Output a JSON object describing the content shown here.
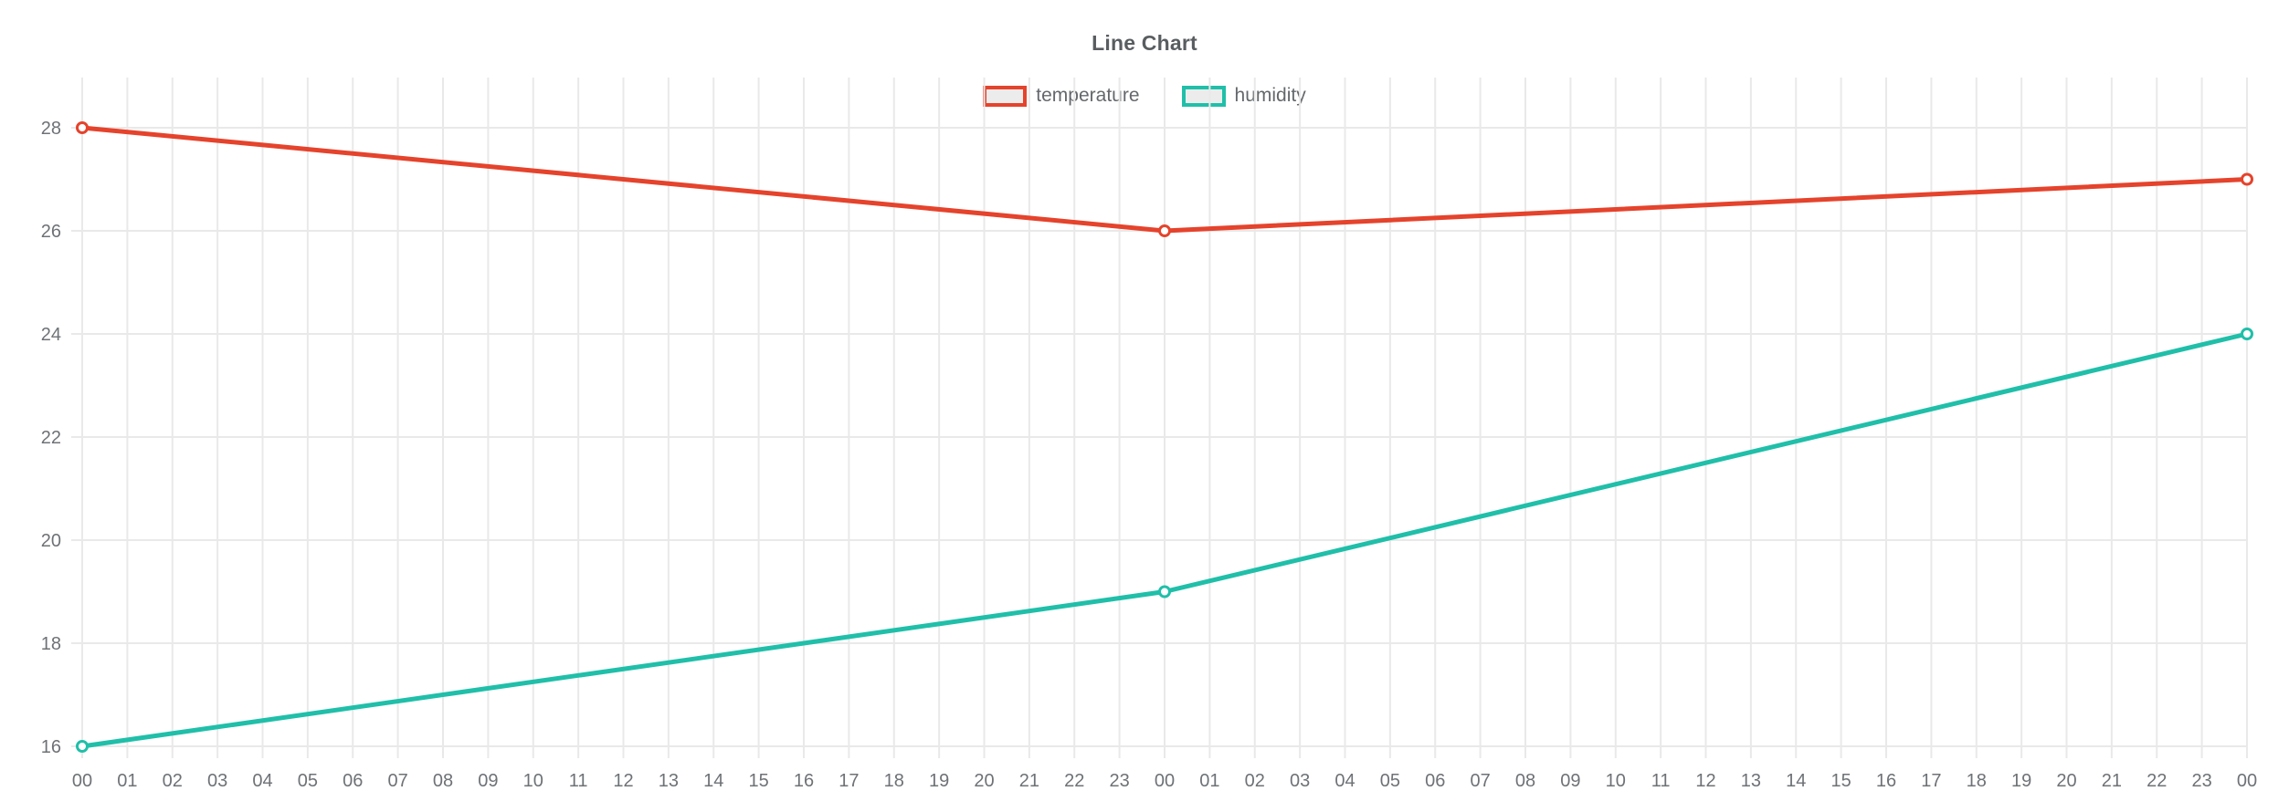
{
  "chart_data": {
    "type": "line",
    "title": "Line Chart",
    "xlabel": "",
    "ylabel": "",
    "x_tick_labels": [
      "00",
      "01",
      "02",
      "03",
      "04",
      "05",
      "06",
      "07",
      "08",
      "09",
      "10",
      "11",
      "12",
      "13",
      "14",
      "15",
      "16",
      "17",
      "18",
      "19",
      "20",
      "21",
      "22",
      "23",
      "00",
      "01",
      "02",
      "03",
      "04",
      "05",
      "06",
      "07",
      "08",
      "09",
      "10",
      "11",
      "12",
      "13",
      "14",
      "15",
      "16",
      "17",
      "18",
      "19",
      "20",
      "21",
      "22",
      "23",
      "00"
    ],
    "yticks": [
      16,
      18,
      20,
      22,
      24,
      26,
      28
    ],
    "ylim": [
      16,
      28.95
    ],
    "grid": true,
    "legend_position": "top-center",
    "marker_style": "hollow-circle",
    "series": [
      {
        "name": "temperature",
        "color": "#e5432c",
        "points": [
          {
            "x_index": 0,
            "x_label": "00",
            "value": 28
          },
          {
            "x_index": 24,
            "x_label": "00",
            "value": 26
          },
          {
            "x_index": 48,
            "x_label": "00",
            "value": 27
          }
        ]
      },
      {
        "name": "humidity",
        "color": "#20bfa9",
        "points": [
          {
            "x_index": 0,
            "x_label": "00",
            "value": 16
          },
          {
            "x_index": 24,
            "x_label": "00",
            "value": 19
          },
          {
            "x_index": 48,
            "x_label": "00",
            "value": 24
          }
        ]
      }
    ],
    "colors": {
      "grid": "#e9e9e9",
      "axis_text": "#6e7276",
      "title_text": "#595d60",
      "legend_text": "#64686c",
      "legend_swatch_fill": "#ececec",
      "marker_fill": "#ffffff",
      "background": "#ffffff"
    }
  }
}
